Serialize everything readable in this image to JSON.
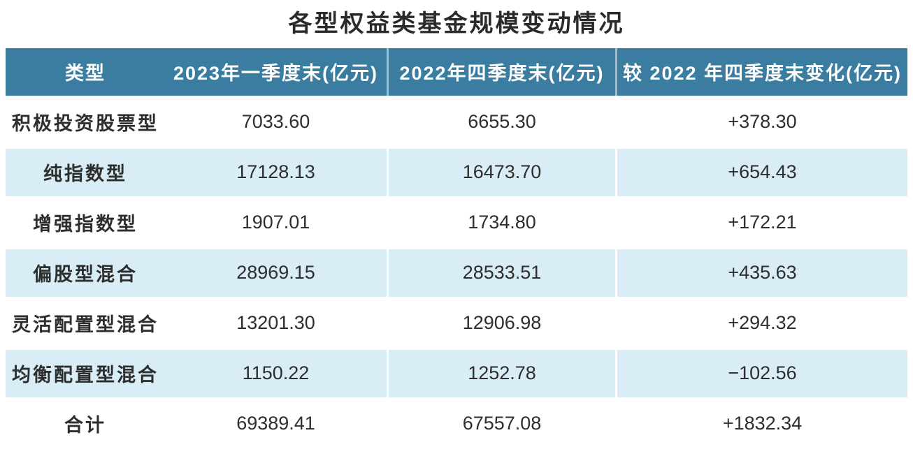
{
  "figure": {
    "title": "各型权益类基金规模变动情况"
  },
  "table": {
    "columns": [
      {
        "label": "类型"
      },
      {
        "label": "2023年一季度末(亿元)"
      },
      {
        "label": "2022年四季度末(亿元)"
      },
      {
        "label": "较 2022 年四季度末变化(亿元)"
      }
    ],
    "rows": [
      {
        "cells": [
          "积极投资股票型",
          "7033.60",
          "6655.30",
          "+378.30"
        ]
      },
      {
        "cells": [
          "纯指数型",
          "17128.13",
          "16473.70",
          "+654.43"
        ]
      },
      {
        "cells": [
          "增强指数型",
          "1907.01",
          "1734.80",
          "+172.21"
        ]
      },
      {
        "cells": [
          "偏股型混合",
          "28969.15",
          "28533.51",
          "+435.63"
        ]
      },
      {
        "cells": [
          "灵活配置型混合",
          "13201.30",
          "12906.98",
          "+294.32"
        ]
      },
      {
        "cells": [
          "均衡配置型混合",
          "1150.22",
          "1252.78",
          "−102.56"
        ]
      },
      {
        "cells": [
          "合计",
          "69389.41",
          "67557.08",
          "+1832.34"
        ]
      }
    ]
  },
  "chart_data": {
    "type": "table",
    "title": "各型权益类基金规模变动情况",
    "units": "亿元",
    "columns": [
      "类型",
      "2023年一季度末(亿元)",
      "2022年四季度末(亿元)",
      "较 2022 年四季度末变化(亿元)"
    ],
    "rows": [
      [
        "积极投资股票型",
        7033.6,
        6655.3,
        378.3
      ],
      [
        "纯指数型",
        17128.13,
        16473.7,
        654.43
      ],
      [
        "增强指数型",
        1907.01,
        1734.8,
        172.21
      ],
      [
        "偏股型混合",
        28969.15,
        28533.51,
        435.63
      ],
      [
        "灵活配置型混合",
        13201.3,
        12906.98,
        294.32
      ],
      [
        "均衡配置型混合",
        1150.22,
        1252.78,
        -102.56
      ],
      [
        "合计",
        69389.41,
        67557.08,
        1832.34
      ]
    ]
  },
  "colors": {
    "header_bg": "#3b7da0",
    "stripe_bg": "#d8edf6",
    "row_bg": "#ffffff",
    "header_text": "#ffffff",
    "body_text": "#2e2e2e"
  }
}
